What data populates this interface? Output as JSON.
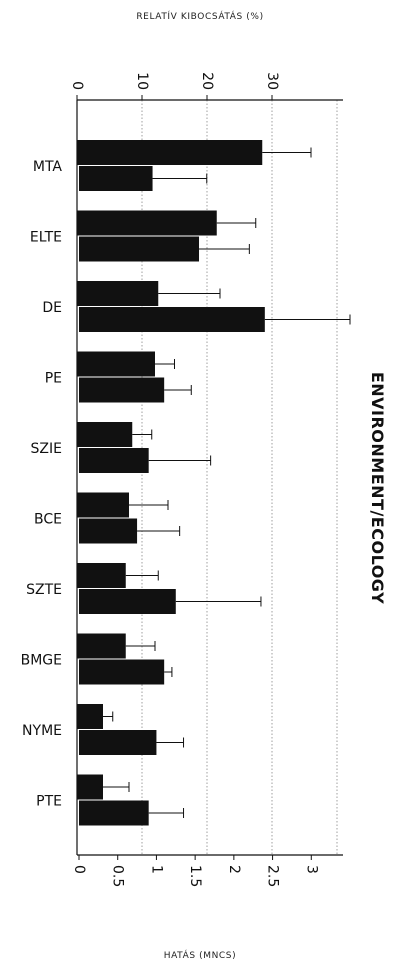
{
  "chart_data": {
    "type": "bar",
    "title": "ENVIRONMENT/ECOLOGY",
    "top_axis": {
      "label": "RELATÍV KIBOCSÁTÁS (%)",
      "ticks": [
        "0",
        "10",
        "20",
        "30"
      ],
      "lim": [
        0,
        40
      ]
    },
    "bottom_axis": {
      "label": "HATÁS (MNCS)",
      "ticks": [
        "0",
        "0.5",
        "1",
        "1.5",
        "2",
        "2.5",
        "3"
      ],
      "lim": [
        0,
        3.5
      ]
    },
    "categories": [
      "MTA",
      "ELTE",
      "DE",
      "PE",
      "SZIE",
      "BCE",
      "SZTE",
      "BMGE",
      "NYME",
      "PTE"
    ],
    "series": [
      {
        "axis": "top",
        "values": [
          28.5,
          21.5,
          12.5,
          12,
          8.5,
          8,
          7.5,
          7.5,
          4,
          4
        ],
        "errors": [
          7.5,
          6,
          9.5,
          3,
          3,
          6,
          5,
          4.5,
          1.5,
          4
        ]
      },
      {
        "axis": "bottom",
        "values": [
          0.95,
          1.55,
          2.4,
          1.1,
          0.9,
          0.75,
          1.25,
          1.1,
          1.0,
          0.9
        ],
        "errors": [
          0.7,
          0.65,
          1.1,
          0.35,
          0.8,
          0.55,
          1.1,
          0.1,
          0.35,
          0.45
        ]
      }
    ],
    "grid": true,
    "bar_color": "#111111"
  }
}
